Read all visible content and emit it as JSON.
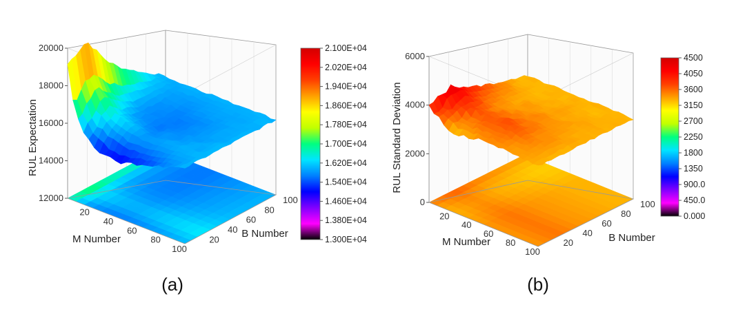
{
  "colors": {
    "rainbow_stops": [
      "#000000",
      "#ff00ff",
      "#8000ff",
      "#0000ff",
      "#0080ff",
      "#00e5ff",
      "#00ff80",
      "#c0ff00",
      "#ffff00",
      "#ffa000",
      "#ff4000",
      "#ff0000",
      "#d40000"
    ],
    "frame": "#999999",
    "floor_a": "#2a6fe0",
    "surface_b": "#f2b21e"
  },
  "chart_data": [
    {
      "type": "surface3d",
      "panel_label": "(a)",
      "xlabel": "M Number",
      "ylabel": "B Number",
      "zlabel": "RUL Expectation",
      "x_ticks": [
        "20",
        "40",
        "60",
        "80",
        "100"
      ],
      "y_ticks": [
        "20",
        "40",
        "60",
        "80",
        "100"
      ],
      "z_ticks": [
        "12000",
        "14000",
        "16000",
        "18000",
        "20000"
      ],
      "xlim": [
        1,
        100
      ],
      "ylim": [
        1,
        100
      ],
      "zlim": [
        12000,
        20000
      ],
      "z_profile_along_M": [
        19500,
        17300,
        16500,
        15900,
        15500,
        15300,
        15100,
        15000,
        14950,
        14900,
        14900,
        14950,
        15050,
        15150,
        15250,
        15350,
        15450,
        15550,
        15650,
        15750,
        15850,
        15950,
        16050
      ],
      "z_profile_along_B": [
        16000,
        16300,
        16700,
        17000,
        17300,
        17400,
        17200,
        16950,
        16750,
        16550,
        16400,
        16300,
        16200,
        16150,
        16100,
        16100,
        16050,
        16050,
        16000,
        16000,
        16000,
        16000,
        16000
      ],
      "z_converged": 16000,
      "colorbar": {
        "range": [
          13000,
          21000
        ],
        "labels": [
          "2.100E+04",
          "2.020E+04",
          "1.940E+04",
          "1.860E+04",
          "1.780E+04",
          "1.700E+04",
          "1.620E+04",
          "1.540E+04",
          "1.460E+04",
          "1.380E+04",
          "1.300E+04"
        ]
      }
    },
    {
      "type": "surface3d",
      "panel_label": "(b)",
      "xlabel": "M Number",
      "ylabel": "B Number",
      "zlabel": "RUL Standard Deviation",
      "x_ticks": [
        "20",
        "40",
        "60",
        "80",
        "100"
      ],
      "y_ticks": [
        "20",
        "40",
        "60",
        "80",
        "100"
      ],
      "z_ticks": [
        "0",
        "2000",
        "4000",
        "6000"
      ],
      "xlim": [
        1,
        100
      ],
      "ylim": [
        1,
        100
      ],
      "zlim": [
        0,
        6000
      ],
      "z_profile_along_M": [
        3600,
        3400,
        3250,
        3100,
        3050,
        3000,
        3000,
        3050,
        3100,
        3150,
        3200,
        3250,
        3300,
        3300,
        3300,
        3300,
        3300,
        3300,
        3300,
        3300,
        3300,
        3300,
        3300
      ],
      "z_profile_along_B": [
        3700,
        3800,
        3900,
        4000,
        4100,
        4200,
        4150,
        4050,
        3950,
        3850,
        3750,
        3700,
        3650,
        3600,
        3550,
        3500,
        3450,
        3400,
        3350,
        3300,
        3300,
        3300,
        3300
      ],
      "z_converged": 3300,
      "colorbar": {
        "range": [
          0,
          4500
        ],
        "labels": [
          "4500",
          "4050",
          "3600",
          "3150",
          "2700",
          "2250",
          "1800",
          "1350",
          "900.0",
          "450.0",
          "0.000"
        ]
      }
    }
  ]
}
